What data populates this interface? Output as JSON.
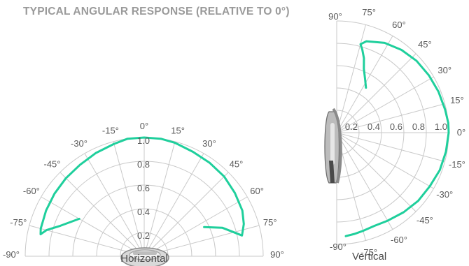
{
  "title": "TYPICAL ANGULAR RESPONSE (RELATIVE TO 0°)",
  "colors": {
    "series": "#1fcf9c",
    "grid": "#c9c9c9",
    "text": "#5a5a5a",
    "title": "#9a9a9a"
  },
  "chart_data": [
    {
      "type": "polar-line",
      "name": "horizontal",
      "caption": "Horizontal",
      "orientation": "up",
      "angle_range": [
        -90,
        90
      ],
      "radial_ticks": [
        "0.2",
        "0.4",
        "0.6",
        "0.8",
        "1.0"
      ],
      "radial_max": 1.0,
      "angle_labels": [
        {
          "deg": -90,
          "text": "-90°"
        },
        {
          "deg": -75,
          "text": "-75°"
        },
        {
          "deg": -60,
          "text": "-60°"
        },
        {
          "deg": -45,
          "text": "-45°"
        },
        {
          "deg": -30,
          "text": "-30°"
        },
        {
          "deg": -15,
          "text": "-15°"
        },
        {
          "deg": 0,
          "text": "0°"
        },
        {
          "deg": 15,
          "text": "15°"
        },
        {
          "deg": 30,
          "text": "30°"
        },
        {
          "deg": 45,
          "text": "45°"
        },
        {
          "deg": 60,
          "text": "60°"
        },
        {
          "deg": 75,
          "text": "75°"
        },
        {
          "deg": 90,
          "text": "90°"
        }
      ],
      "series": {
        "theta": [
          -60,
          -70,
          -75,
          -78,
          -75,
          -65,
          -55,
          -45,
          -35,
          -25,
          -15,
          -8,
          0,
          8,
          15,
          25,
          35,
          45,
          55,
          65,
          72,
          78,
          75,
          70,
          64
        ],
        "r": [
          0.63,
          0.75,
          0.85,
          0.89,
          0.9,
          0.91,
          0.92,
          0.93,
          0.94,
          0.96,
          0.98,
          1.0,
          1.0,
          1.0,
          0.99,
          0.97,
          0.96,
          0.95,
          0.93,
          0.91,
          0.88,
          0.84,
          0.78,
          0.7,
          0.56
        ]
      }
    },
    {
      "type": "polar-line",
      "name": "vertical",
      "caption": "Vertical",
      "orientation": "right",
      "angle_range": [
        -90,
        90
      ],
      "radial_ticks": [
        "0.2",
        "0.4",
        "0.6",
        "0.8",
        "1.0"
      ],
      "radial_max": 1.0,
      "angle_labels": [
        {
          "deg": 90,
          "text": "90°"
        },
        {
          "deg": 75,
          "text": "75°"
        },
        {
          "deg": 60,
          "text": "60°"
        },
        {
          "deg": 45,
          "text": "45°"
        },
        {
          "deg": 30,
          "text": "30°"
        },
        {
          "deg": 15,
          "text": "15°"
        },
        {
          "deg": 0,
          "text": "0°"
        },
        {
          "deg": -15,
          "text": "-15°"
        },
        {
          "deg": -30,
          "text": "-30°"
        },
        {
          "deg": -45,
          "text": "-45°"
        },
        {
          "deg": -60,
          "text": "-60°"
        },
        {
          "deg": -75,
          "text": "-75°"
        },
        {
          "deg": -90,
          "text": "-90°"
        }
      ],
      "series": {
        "theta": [
          57,
          62,
          67,
          70,
          73,
          75,
          72,
          62,
          52,
          42,
          32,
          22,
          12,
          5,
          0,
          -10,
          -20,
          -30,
          -40,
          -50,
          -60,
          -68,
          -75,
          -80,
          -85
        ],
        "r": [
          0.48,
          0.54,
          0.62,
          0.71,
          0.78,
          0.82,
          0.86,
          0.91,
          0.94,
          0.96,
          0.97,
          0.98,
          0.99,
          1.0,
          1.0,
          0.99,
          0.98,
          0.96,
          0.95,
          0.93,
          0.91,
          0.9,
          0.91,
          0.92,
          0.93
        ]
      }
    }
  ]
}
